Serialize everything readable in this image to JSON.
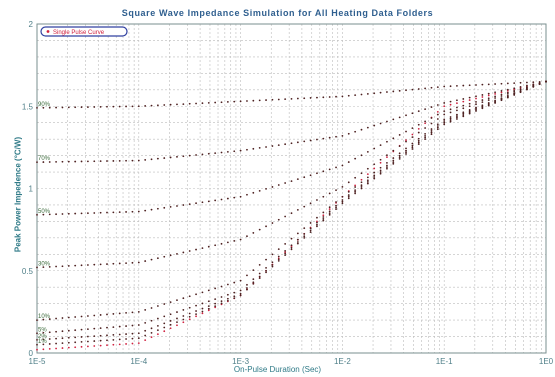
{
  "chart_data": {
    "type": "scatter",
    "title": "Square Wave Impedance Simulation for All Heating Data Folders",
    "xlabel": "On-Pulse Duration (Sec)",
    "ylabel": "Peak Power Impedence (°C/W)",
    "x_scale": "log",
    "xlim": [
      1e-05,
      1
    ],
    "ylim": [
      0,
      2
    ],
    "x_tick_labels": [
      "1E-5",
      "1E-4",
      "1E-3",
      "1E-2",
      "1E-1",
      "1E0"
    ],
    "y_tick_labels": [
      "0",
      "0.5",
      "1",
      "1.5",
      "2"
    ],
    "grid": true,
    "legend": {
      "entries": [
        "Single Pulse Curve"
      ],
      "position": "top-left"
    },
    "curve_labels": [
      "90%",
      "70%",
      "50%",
      "30%",
      "10%",
      "5%",
      "2%",
      "1%"
    ],
    "series": [
      {
        "name": "Single Pulse Curve",
        "x": [
          1e-05,
          0.0001,
          0.001,
          0.01,
          0.1,
          1
        ],
        "y": [
          0.02,
          0.06,
          0.35,
          0.95,
          1.5,
          1.65
        ]
      },
      {
        "x": [
          1e-05,
          0.0001,
          0.001,
          0.01,
          0.1,
          1
        ],
        "y": [
          1.49,
          1.5,
          1.53,
          1.56,
          1.62,
          1.65
        ]
      },
      {
        "x": [
          1e-05,
          0.0001,
          0.001,
          0.01,
          0.1,
          1
        ],
        "y": [
          1.16,
          1.17,
          1.23,
          1.32,
          1.52,
          1.65
        ]
      },
      {
        "x": [
          1e-05,
          0.0001,
          0.001,
          0.01,
          0.1,
          1
        ],
        "y": [
          0.84,
          0.86,
          0.95,
          1.14,
          1.47,
          1.65
        ]
      },
      {
        "x": [
          1e-05,
          0.0001,
          0.001,
          0.01,
          0.1,
          1
        ],
        "y": [
          0.52,
          0.55,
          0.69,
          1.01,
          1.45,
          1.65
        ]
      },
      {
        "x": [
          1e-05,
          0.0001,
          0.001,
          0.01,
          0.1,
          1
        ],
        "y": [
          0.2,
          0.25,
          0.44,
          0.95,
          1.42,
          1.65
        ]
      },
      {
        "x": [
          1e-05,
          0.0001,
          0.001,
          0.01,
          0.1,
          1
        ],
        "y": [
          0.12,
          0.17,
          0.38,
          0.93,
          1.41,
          1.65
        ]
      },
      {
        "x": [
          1e-05,
          0.0001,
          0.001,
          0.01,
          0.1,
          1
        ],
        "y": [
          0.08,
          0.12,
          0.36,
          0.92,
          1.4,
          1.65
        ]
      },
      {
        "x": [
          1e-05,
          0.0001,
          0.001,
          0.01,
          0.1,
          1
        ],
        "y": [
          0.05,
          0.09,
          0.35,
          0.91,
          1.39,
          1.65
        ]
      }
    ],
    "colors": {
      "points": "#4d2020",
      "single_pulse": "#d0203f",
      "grid": "#bcbcbc",
      "tick_text": "#4f7f88",
      "title": "#2f5f8f"
    }
  }
}
